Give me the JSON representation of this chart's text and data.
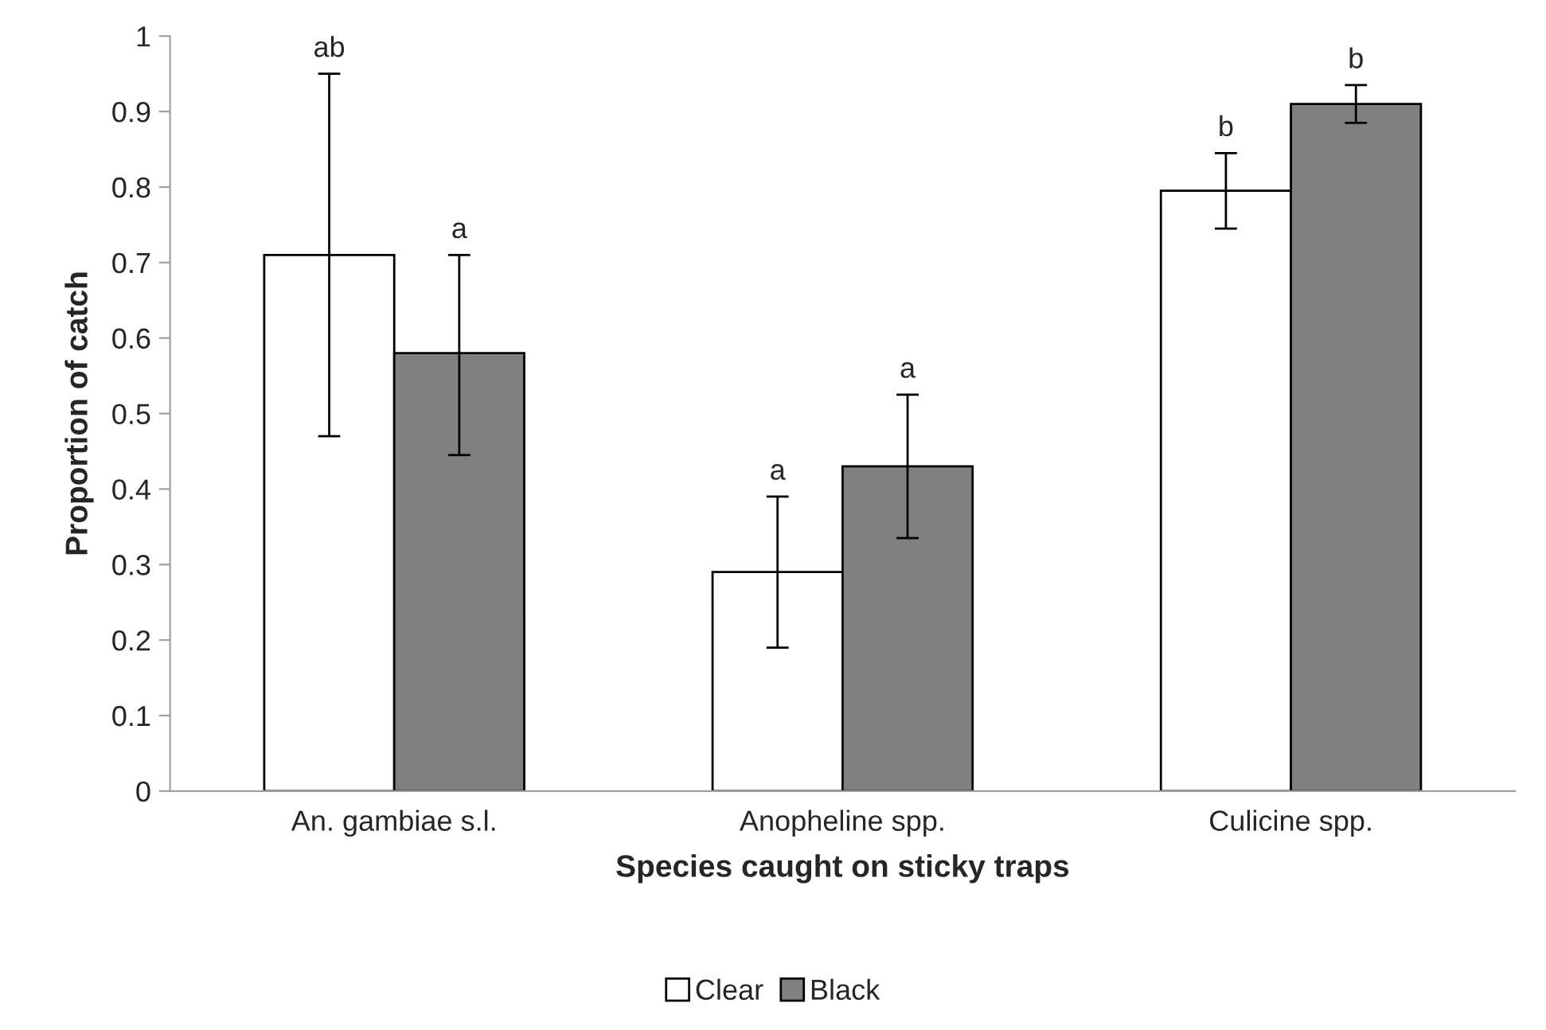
{
  "chart_data": {
    "type": "bar",
    "xlabel": "Species caught on sticky traps",
    "ylabel": "Proportion of catch",
    "categories": [
      "An. gambiae s.l.",
      "Anopheline spp.",
      "Culicine spp."
    ],
    "series": [
      {
        "name": "Clear",
        "color": "#ffffff",
        "values": [
          0.71,
          0.29,
          0.795
        ],
        "errors": [
          [
            0.47,
            0.95
          ],
          [
            0.19,
            0.39
          ],
          [
            0.745,
            0.845
          ]
        ]
      },
      {
        "name": "Black",
        "color": "#808080",
        "values": [
          0.58,
          0.43,
          0.91
        ],
        "errors": [
          [
            0.445,
            0.71
          ],
          [
            0.335,
            0.525
          ],
          [
            0.885,
            0.935
          ]
        ]
      }
    ],
    "annotations": [
      "ab",
      "a",
      "a",
      "a",
      "b",
      "b"
    ],
    "ylim": [
      0,
      1
    ],
    "yticks": [
      0,
      0.1,
      0.2,
      0.3,
      0.4,
      0.5,
      0.6,
      0.7,
      0.8,
      0.9,
      1
    ],
    "legend": "bottom"
  }
}
